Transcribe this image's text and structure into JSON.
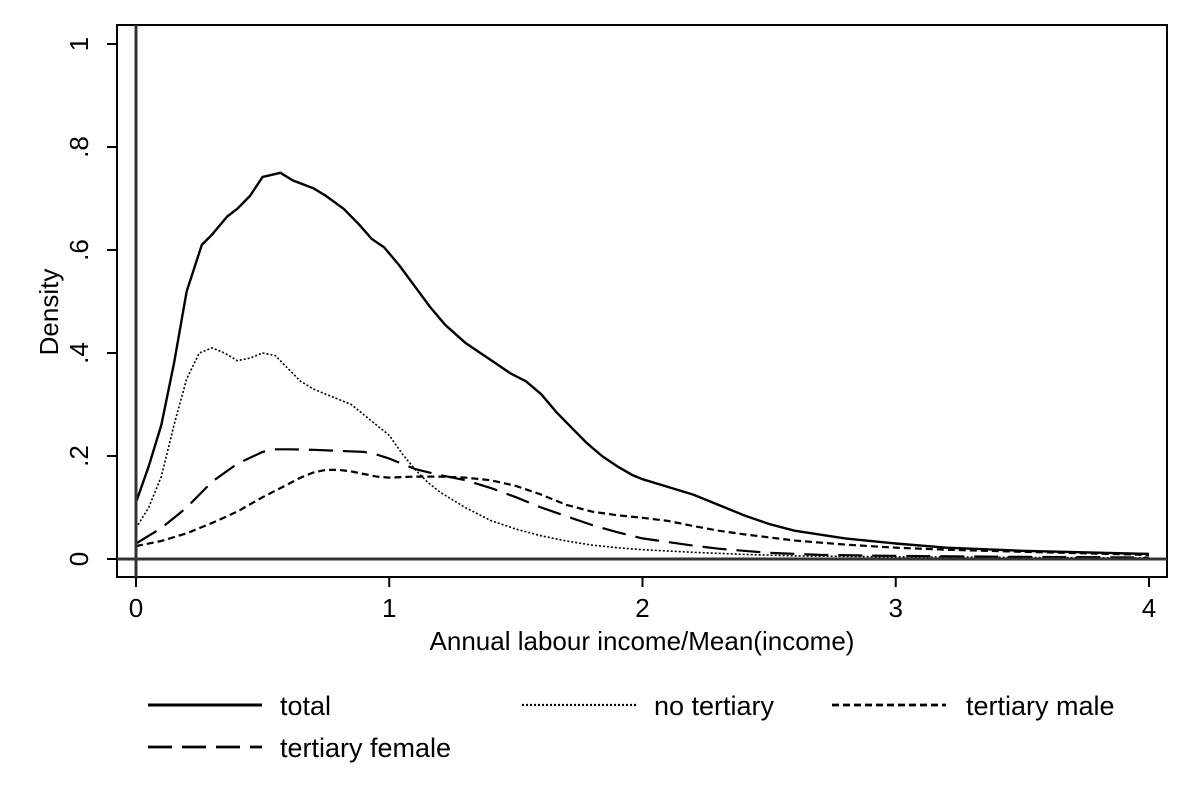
{
  "chart_data": {
    "type": "line",
    "title": "",
    "xlabel": "Annual labour income/Mean(income)",
    "ylabel": "Density",
    "xlim": [
      0,
      4
    ],
    "ylim": [
      0,
      1
    ],
    "x_ticks": [
      0,
      1,
      2,
      3,
      4
    ],
    "x_tick_labels": [
      "0",
      "1",
      "2",
      "3",
      "4"
    ],
    "y_ticks": [
      0,
      0.2,
      0.4,
      0.6,
      0.8,
      1
    ],
    "y_tick_labels": [
      "0",
      ".2",
      ".4",
      ".6",
      ".8",
      "1"
    ],
    "grid": false,
    "legend_position": "bottom",
    "series": [
      {
        "name": "total",
        "style": "solid",
        "points": [
          [
            0,
            0.11
          ],
          [
            0.05,
            0.18
          ],
          [
            0.1,
            0.26
          ],
          [
            0.15,
            0.38
          ],
          [
            0.2,
            0.52
          ],
          [
            0.26,
            0.61
          ],
          [
            0.3,
            0.63
          ],
          [
            0.36,
            0.665
          ],
          [
            0.4,
            0.68
          ],
          [
            0.45,
            0.705
          ],
          [
            0.5,
            0.742
          ],
          [
            0.57,
            0.75
          ],
          [
            0.62,
            0.735
          ],
          [
            0.7,
            0.72
          ],
          [
            0.75,
            0.705
          ],
          [
            0.82,
            0.68
          ],
          [
            0.88,
            0.65
          ],
          [
            0.93,
            0.622
          ],
          [
            0.98,
            0.605
          ],
          [
            1.04,
            0.57
          ],
          [
            1.1,
            0.53
          ],
          [
            1.16,
            0.49
          ],
          [
            1.22,
            0.455
          ],
          [
            1.3,
            0.42
          ],
          [
            1.36,
            0.4
          ],
          [
            1.42,
            0.38
          ],
          [
            1.48,
            0.36
          ],
          [
            1.54,
            0.345
          ],
          [
            1.6,
            0.32
          ],
          [
            1.66,
            0.285
          ],
          [
            1.72,
            0.255
          ],
          [
            1.78,
            0.225
          ],
          [
            1.84,
            0.2
          ],
          [
            1.9,
            0.18
          ],
          [
            1.96,
            0.163
          ],
          [
            2.0,
            0.155
          ],
          [
            2.1,
            0.14
          ],
          [
            2.2,
            0.125
          ],
          [
            2.3,
            0.105
          ],
          [
            2.4,
            0.085
          ],
          [
            2.5,
            0.068
          ],
          [
            2.6,
            0.055
          ],
          [
            2.8,
            0.04
          ],
          [
            3.0,
            0.03
          ],
          [
            3.2,
            0.022
          ],
          [
            3.5,
            0.016
          ],
          [
            4.0,
            0.01
          ]
        ]
      },
      {
        "name": "no tertiary",
        "style": "dotted",
        "points": [
          [
            0,
            0.06
          ],
          [
            0.05,
            0.1
          ],
          [
            0.1,
            0.16
          ],
          [
            0.15,
            0.26
          ],
          [
            0.2,
            0.35
          ],
          [
            0.25,
            0.4
          ],
          [
            0.3,
            0.41
          ],
          [
            0.35,
            0.4
          ],
          [
            0.4,
            0.385
          ],
          [
            0.45,
            0.39
          ],
          [
            0.5,
            0.4
          ],
          [
            0.55,
            0.395
          ],
          [
            0.6,
            0.37
          ],
          [
            0.65,
            0.345
          ],
          [
            0.7,
            0.33
          ],
          [
            0.75,
            0.32
          ],
          [
            0.8,
            0.31
          ],
          [
            0.85,
            0.3
          ],
          [
            0.9,
            0.28
          ],
          [
            0.95,
            0.26
          ],
          [
            1.0,
            0.24
          ],
          [
            1.05,
            0.205
          ],
          [
            1.1,
            0.175
          ],
          [
            1.15,
            0.15
          ],
          [
            1.2,
            0.13
          ],
          [
            1.3,
            0.1
          ],
          [
            1.4,
            0.075
          ],
          [
            1.5,
            0.058
          ],
          [
            1.6,
            0.045
          ],
          [
            1.7,
            0.035
          ],
          [
            1.8,
            0.027
          ],
          [
            1.9,
            0.022
          ],
          [
            2.0,
            0.018
          ],
          [
            2.2,
            0.013
          ],
          [
            2.4,
            0.009
          ],
          [
            2.6,
            0.006
          ],
          [
            3.0,
            0.004
          ],
          [
            4.0,
            0.002
          ]
        ]
      },
      {
        "name": "tertiary male",
        "style": "short-dash",
        "points": [
          [
            0,
            0.025
          ],
          [
            0.1,
            0.035
          ],
          [
            0.2,
            0.05
          ],
          [
            0.3,
            0.07
          ],
          [
            0.4,
            0.092
          ],
          [
            0.5,
            0.12
          ],
          [
            0.6,
            0.145
          ],
          [
            0.65,
            0.158
          ],
          [
            0.7,
            0.168
          ],
          [
            0.75,
            0.173
          ],
          [
            0.8,
            0.173
          ],
          [
            0.85,
            0.17
          ],
          [
            0.9,
            0.165
          ],
          [
            0.95,
            0.16
          ],
          [
            1.0,
            0.158
          ],
          [
            1.1,
            0.16
          ],
          [
            1.2,
            0.16
          ],
          [
            1.3,
            0.158
          ],
          [
            1.4,
            0.153
          ],
          [
            1.5,
            0.142
          ],
          [
            1.6,
            0.125
          ],
          [
            1.7,
            0.105
          ],
          [
            1.8,
            0.092
          ],
          [
            1.9,
            0.085
          ],
          [
            2.0,
            0.08
          ],
          [
            2.1,
            0.074
          ],
          [
            2.2,
            0.064
          ],
          [
            2.3,
            0.055
          ],
          [
            2.4,
            0.048
          ],
          [
            2.5,
            0.042
          ],
          [
            2.6,
            0.036
          ],
          [
            2.8,
            0.028
          ],
          [
            3.0,
            0.022
          ],
          [
            3.2,
            0.018
          ],
          [
            3.5,
            0.014
          ],
          [
            4.0,
            0.008
          ]
        ]
      },
      {
        "name": "tertiary female",
        "style": "long-dash",
        "points": [
          [
            0,
            0.03
          ],
          [
            0.1,
            0.06
          ],
          [
            0.2,
            0.1
          ],
          [
            0.3,
            0.15
          ],
          [
            0.4,
            0.185
          ],
          [
            0.5,
            0.208
          ],
          [
            0.55,
            0.213
          ],
          [
            0.6,
            0.213
          ],
          [
            0.7,
            0.212
          ],
          [
            0.8,
            0.21
          ],
          [
            0.9,
            0.208
          ],
          [
            0.95,
            0.203
          ],
          [
            1.0,
            0.195
          ],
          [
            1.05,
            0.185
          ],
          [
            1.1,
            0.175
          ],
          [
            1.2,
            0.163
          ],
          [
            1.3,
            0.153
          ],
          [
            1.4,
            0.138
          ],
          [
            1.5,
            0.12
          ],
          [
            1.6,
            0.1
          ],
          [
            1.7,
            0.083
          ],
          [
            1.8,
            0.066
          ],
          [
            1.9,
            0.052
          ],
          [
            2.0,
            0.04
          ],
          [
            2.1,
            0.033
          ],
          [
            2.2,
            0.026
          ],
          [
            2.3,
            0.02
          ],
          [
            2.4,
            0.016
          ],
          [
            2.5,
            0.012
          ],
          [
            2.7,
            0.008
          ],
          [
            3.0,
            0.006
          ],
          [
            3.5,
            0.004
          ],
          [
            4.0,
            0.003
          ]
        ]
      }
    ]
  }
}
